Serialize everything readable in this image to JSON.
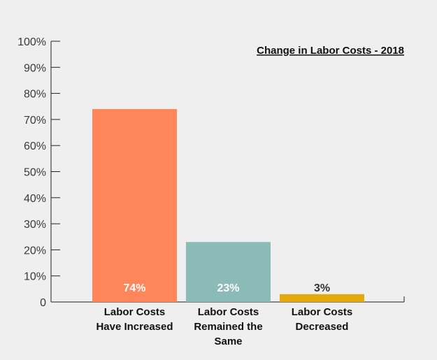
{
  "chart_data": {
    "type": "bar",
    "title": "Change in Labor Costs - 2018",
    "categories": [
      [
        "Labor Costs",
        "Have Increased"
      ],
      [
        "Labor Costs",
        "Remained the",
        "Same"
      ],
      [
        "Labor Costs",
        "Decreased"
      ]
    ],
    "values": [
      74,
      23,
      3
    ],
    "value_labels": [
      "74%",
      "23%",
      "3%"
    ],
    "colors": [
      "#ff865a",
      "#8bbab7",
      "#e3a90f"
    ],
    "value_label_colors": [
      "#ffffff",
      "#ffffff",
      "#333333"
    ],
    "ylim": [
      0,
      100
    ],
    "yticks": [
      0,
      10,
      20,
      30,
      40,
      50,
      60,
      70,
      80,
      90,
      100
    ],
    "ytick_labels": [
      "0",
      "10%",
      "20%",
      "30%",
      "40%",
      "50%",
      "60%",
      "70%",
      "80%",
      "90%",
      "100%"
    ],
    "xlabel": "",
    "ylabel": "",
    "grid": false,
    "legend": false
  }
}
